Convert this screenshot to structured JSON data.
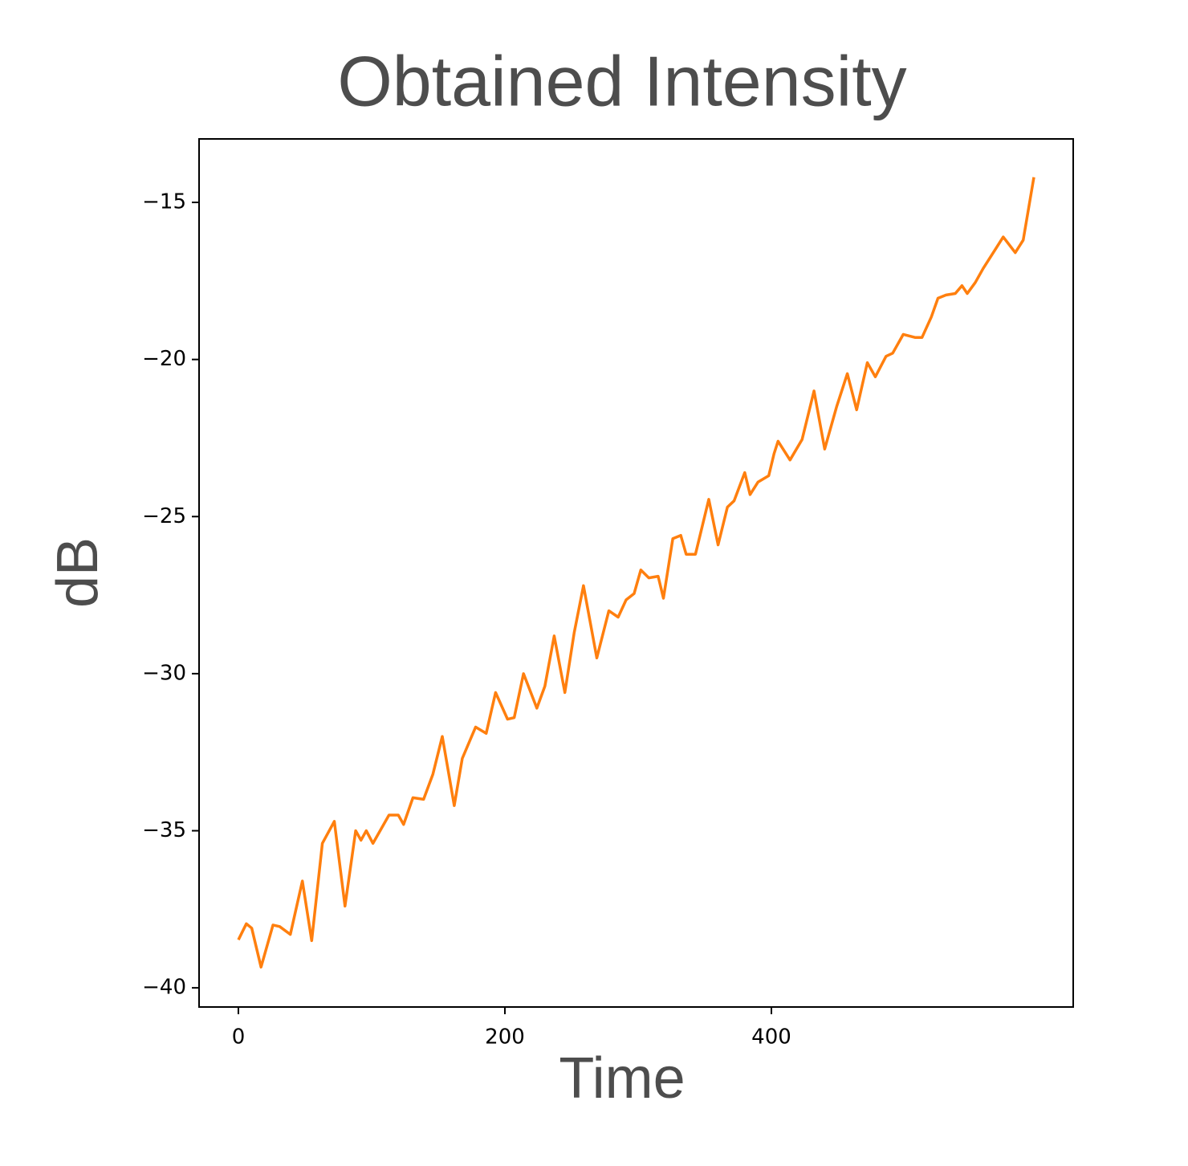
{
  "chart_data": {
    "type": "line",
    "title": "Obtained Intensity",
    "x_label": "Time",
    "y_label": "dB",
    "color": "#ff7f0e",
    "x": [
      0,
      6,
      10,
      17,
      26,
      31,
      39,
      48,
      55,
      63,
      72,
      80,
      88,
      92,
      96,
      101,
      113,
      120,
      124,
      131,
      139,
      146,
      153,
      162,
      168,
      178,
      186,
      193,
      202,
      207,
      214,
      224,
      230,
      237,
      245,
      252,
      259,
      269,
      278,
      285,
      291,
      297,
      302,
      308,
      315,
      319,
      326,
      332,
      336,
      343,
      353,
      360,
      367,
      372,
      380,
      384,
      390,
      398,
      402,
      405,
      414,
      423,
      432,
      440,
      449,
      457,
      464,
      472,
      478,
      486,
      491,
      499,
      508,
      513,
      520,
      525,
      531,
      538,
      543,
      547,
      553,
      559,
      568,
      574,
      583,
      589,
      597
    ],
    "values": [
      -38.47,
      -37.96,
      -38.1,
      -39.34,
      -38.0,
      -38.05,
      -38.3,
      -36.6,
      -38.5,
      -35.4,
      -34.7,
      -37.4,
      -35.0,
      -35.3,
      -35.0,
      -35.4,
      -34.5,
      -34.5,
      -34.8,
      -33.95,
      -34.0,
      -33.2,
      -32.0,
      -34.2,
      -32.7,
      -31.7,
      -31.9,
      -30.6,
      -31.45,
      -31.4,
      -30.0,
      -31.1,
      -30.4,
      -28.8,
      -30.6,
      -28.7,
      -27.2,
      -29.5,
      -28.0,
      -28.2,
      -27.65,
      -27.45,
      -26.7,
      -26.95,
      -26.9,
      -27.6,
      -25.7,
      -25.6,
      -26.2,
      -26.2,
      -24.45,
      -25.9,
      -24.7,
      -24.5,
      -23.6,
      -24.3,
      -23.9,
      -23.7,
      -23.0,
      -22.6,
      -23.2,
      -22.55,
      -21.0,
      -22.85,
      -21.5,
      -20.45,
      -21.6,
      -20.1,
      -20.55,
      -19.9,
      -19.8,
      -19.2,
      -19.3,
      -19.3,
      -18.65,
      -18.05,
      -17.95,
      -17.9,
      -17.65,
      -17.9,
      -17.55,
      -17.1,
      -16.5,
      -16.1,
      -16.6,
      -16.2,
      -14.2
    ],
    "xlim": [
      -29.5,
      626.5
    ],
    "ylim": [
      -40.61,
      -12.98
    ],
    "xticks": [
      0,
      200,
      400
    ],
    "yticks": [
      {
        "value": -40,
        "label": "−40"
      },
      {
        "value": -35,
        "label": "−35"
      },
      {
        "value": -30,
        "label": "−30"
      },
      {
        "value": -25,
        "label": "−25"
      },
      {
        "value": -20,
        "label": "−20"
      },
      {
        "value": -15,
        "label": "−15"
      }
    ]
  }
}
